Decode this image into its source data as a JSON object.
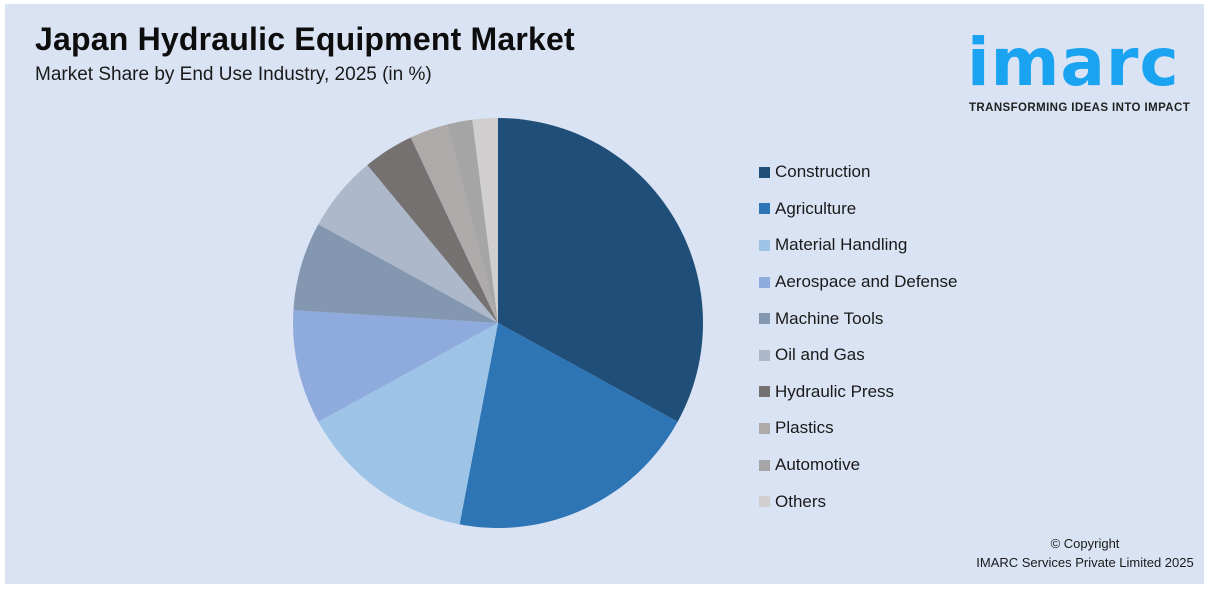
{
  "header": {
    "title": "Japan Hydraulic Equipment Market",
    "subtitle": "Market Share by End Use Industry, 2025 (in %)"
  },
  "logo": {
    "word": "imarc",
    "tagline": "TRANSFORMING IDEAS INTO IMPACT",
    "color": "#1aa3f0"
  },
  "footer": {
    "line1": "© Copyright",
    "line2": "IMARC Services Private Limited 2025"
  },
  "chart_data": {
    "type": "pie",
    "title": "Japan Hydraulic Equipment Market",
    "subtitle": "Market Share by End Use Industry, 2025 (in %)",
    "categories": [
      "Construction",
      "Agriculture",
      "Material Handling",
      "Aerospace and Defense",
      "Machine Tools",
      "Oil and Gas",
      "Hydraulic Press",
      "Plastics",
      "Automotive",
      "Others"
    ],
    "values": [
      33,
      20,
      14,
      9,
      7,
      6,
      4,
      3,
      2,
      2
    ],
    "colors": [
      "#1f4e79",
      "#2e75b6",
      "#9dc3e6",
      "#8faadc",
      "#8497b0",
      "#adb9ca",
      "#767171",
      "#aeaaaa",
      "#a5a5a5",
      "#d0cece"
    ],
    "start_angle_deg": 0,
    "direction": "clockwise",
    "legend_position": "right",
    "data_labels": false
  }
}
